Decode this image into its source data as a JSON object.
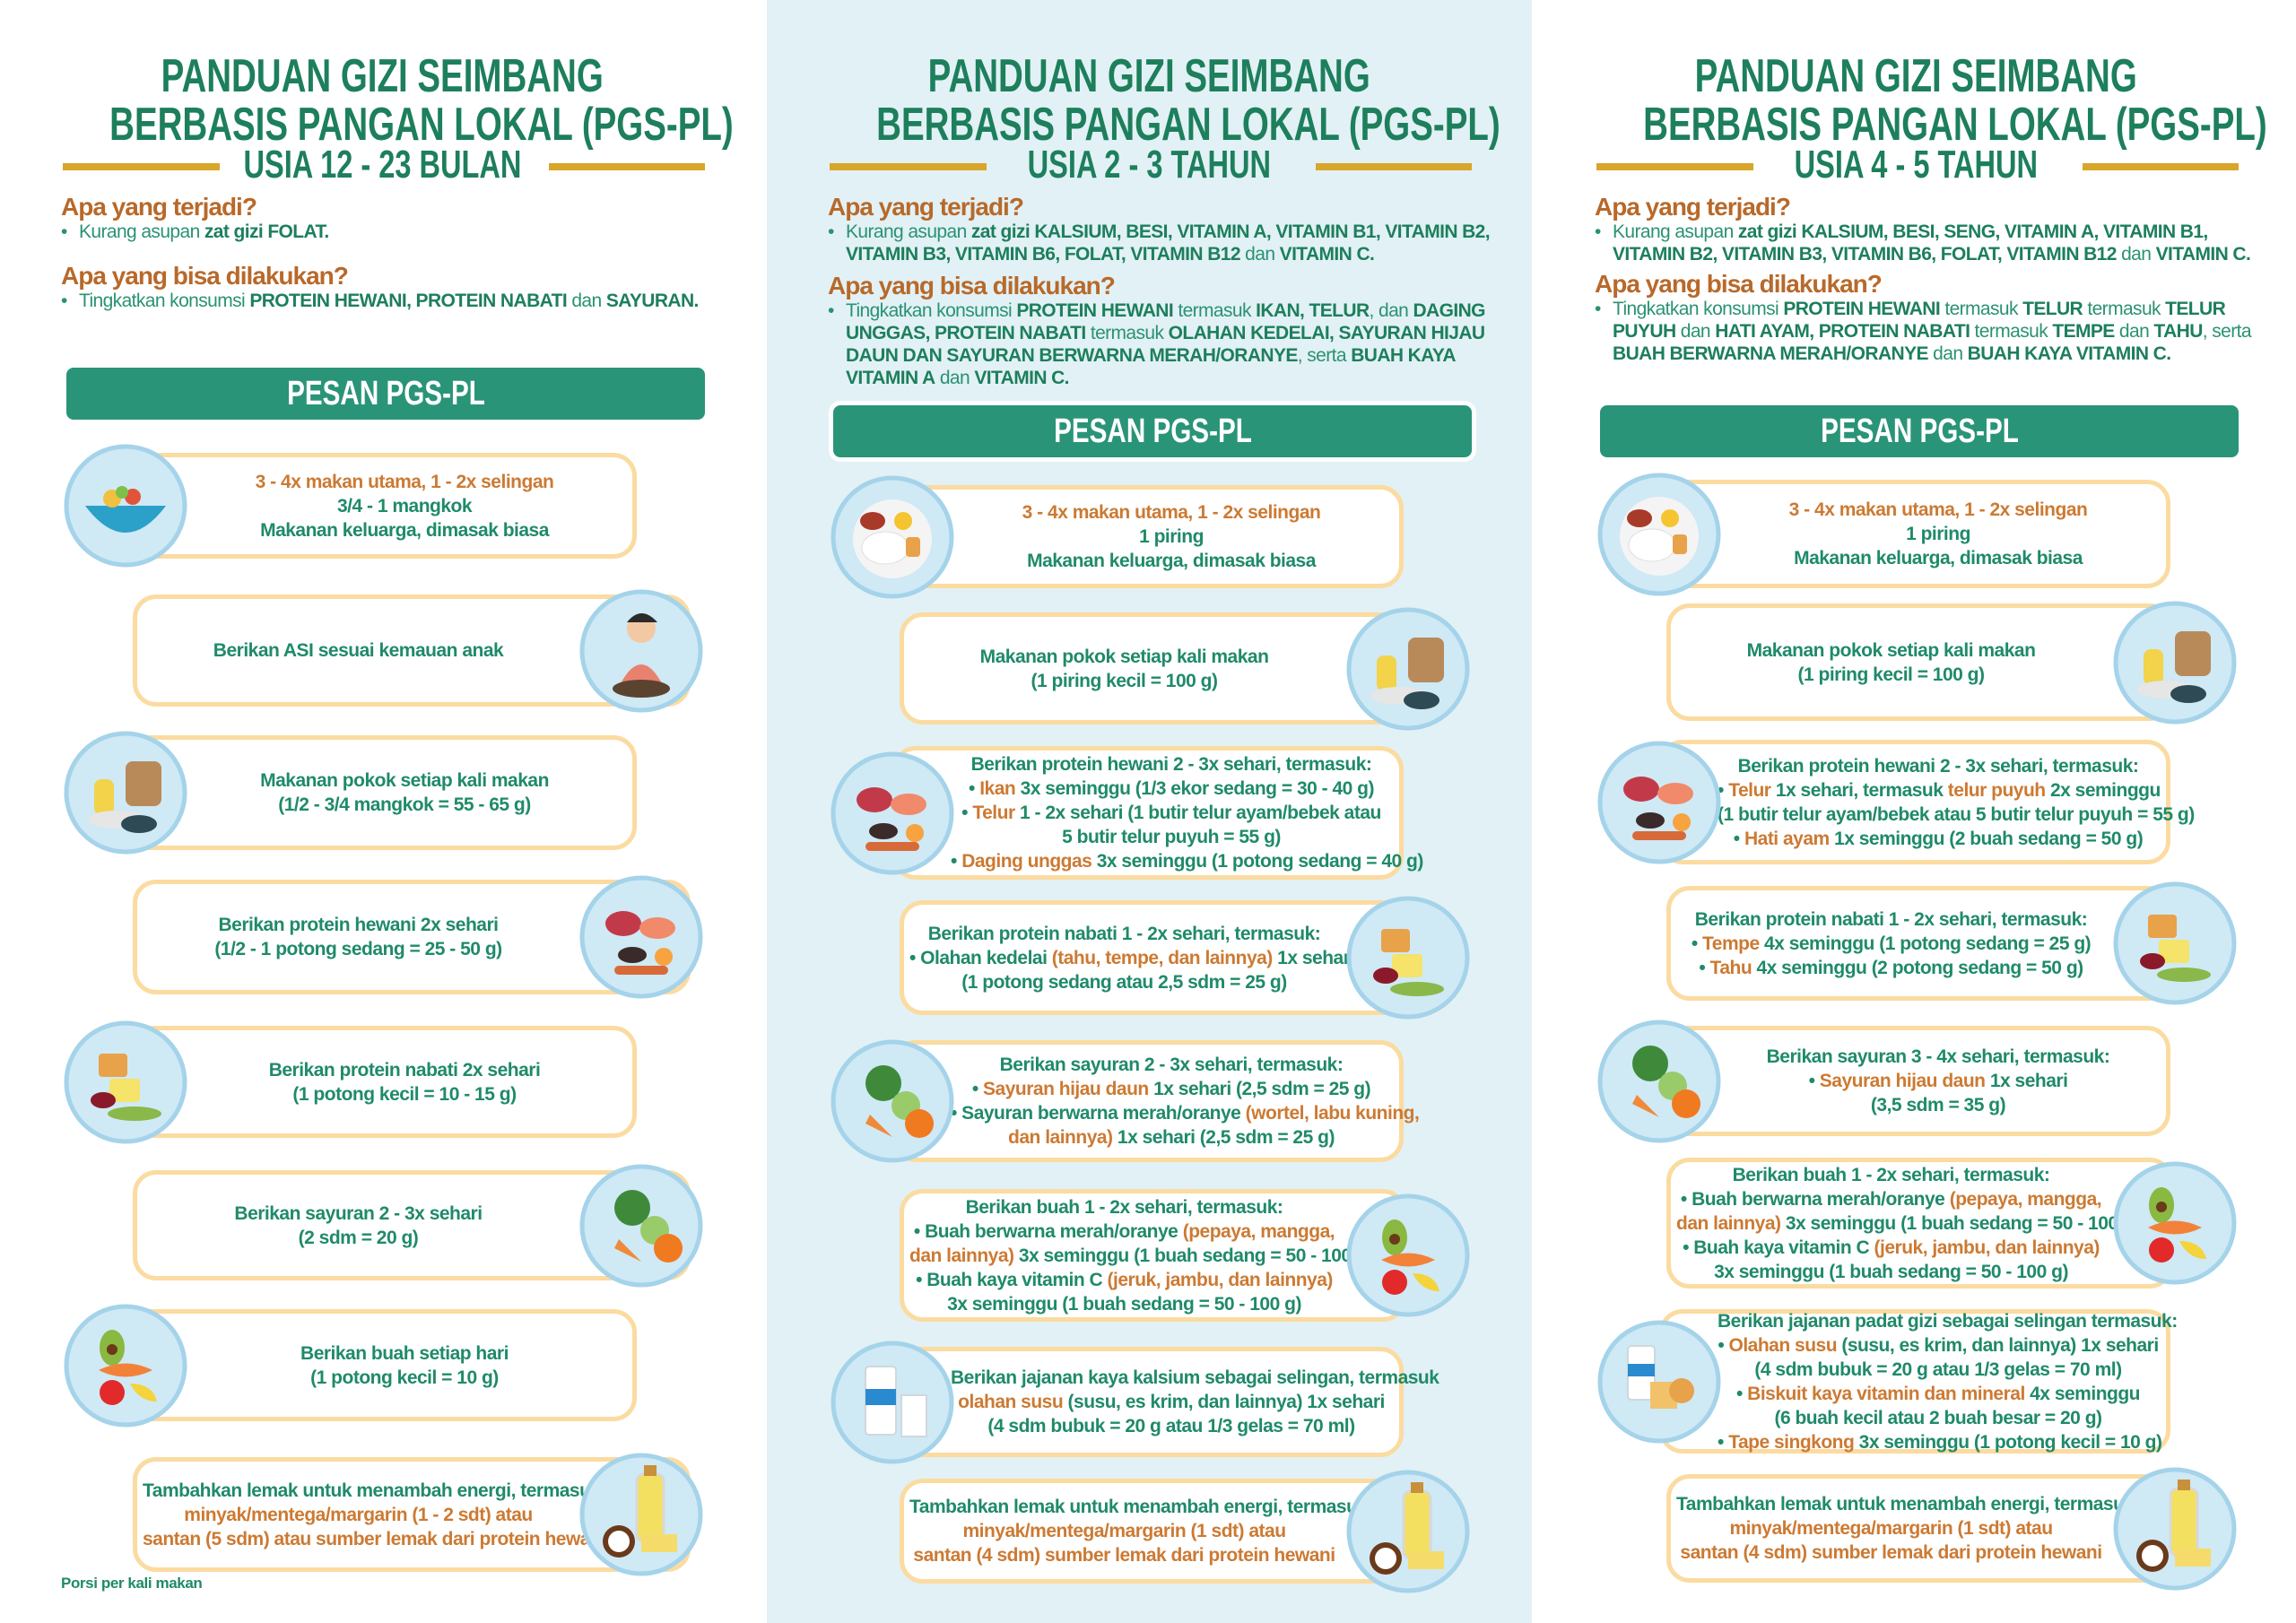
{
  "colors": {
    "green": "#1f8a6a",
    "banner": "#2a9478",
    "orange": "#cc7a33",
    "gold": "#d8a62a",
    "card_border": "#fbdba0",
    "icon_bg": "#cfe9f5"
  },
  "columns": [
    {
      "title_line1": "PANDUAN GIZI SEIMBANG",
      "title_line2": "BERBASIS PANGAN LOKAL (PGS-PL)",
      "age": "USIA 12 - 23 BULAN",
      "q1": "Apa yang terjadi?",
      "a1": [
        [
          "Kurang asupan ",
          ""
        ],
        [
          "zat gizi FOLAT.",
          "b"
        ]
      ],
      "q2": "Apa yang bisa dilakukan?",
      "a2": [
        [
          "Tingkatkan konsumsi ",
          ""
        ],
        [
          "PROTEIN HEWANI, PROTEIN NABATI",
          "b"
        ],
        [
          " dan ",
          ""
        ],
        [
          "SAYURAN.",
          "b"
        ]
      ],
      "banner": "PESAN PGS-PL",
      "cards": [
        {
          "icon": "soup-bowl-icon",
          "lines": [
            [
              [
                "3 - 4x makan utama, 1 - 2x selingan",
                "o"
              ]
            ],
            [
              [
                "3/4 - 1 mangkok",
                ""
              ]
            ],
            [
              [
                "Makanan keluarga, dimasak biasa",
                ""
              ]
            ]
          ]
        },
        {
          "icon": "breastfeeding-mother-icon",
          "lines": [
            [
              [
                "Berikan ASI sesuai kemauan anak",
                ""
              ]
            ]
          ]
        },
        {
          "icon": "staple-food-icon",
          "lines": [
            [
              [
                "Makanan pokok setiap kali makan",
                ""
              ]
            ],
            [
              [
                "(1/2 - 3/4 mangkok = 55 - 65 g)",
                ""
              ]
            ]
          ]
        },
        {
          "icon": "animal-protein-icon",
          "lines": [
            [
              [
                "Berikan protein hewani 2x sehari",
                ""
              ]
            ],
            [
              [
                "(1/2 - 1 potong sedang = 25 - 50 g)",
                ""
              ]
            ]
          ]
        },
        {
          "icon": "plant-protein-icon",
          "lines": [
            [
              [
                "Berikan protein nabati 2x sehari",
                ""
              ]
            ],
            [
              [
                "(1 potong kecil = 10 - 15 g)",
                ""
              ]
            ]
          ]
        },
        {
          "icon": "vegetables-icon",
          "lines": [
            [
              [
                "Berikan sayuran 2 - 3x sehari",
                ""
              ]
            ],
            [
              [
                "(2 sdm = 20 g)",
                ""
              ]
            ]
          ]
        },
        {
          "icon": "fruits-icon",
          "lines": [
            [
              [
                "Berikan buah setiap hari",
                ""
              ]
            ],
            [
              [
                "(1 potong kecil = 10 g)",
                ""
              ]
            ]
          ]
        },
        {
          "icon": "oil-coconut-butter-icon",
          "lines": [
            [
              [
                "Tambahkan lemak untuk menambah energi, termasuk",
                ""
              ]
            ],
            [
              [
                "minyak/mentega/margarin (1 - 2 sdt) atau",
                "o"
              ]
            ],
            [
              [
                "santan (5 sdm) atau sumber lemak dari protein hewani",
                "o"
              ]
            ]
          ]
        }
      ],
      "footnote": "Porsi per kali makan"
    },
    {
      "title_line1": "PANDUAN GIZI SEIMBANG",
      "title_line2": "BERBASIS PANGAN LOKAL (PGS-PL)",
      "age": "USIA 2 - 3 TAHUN",
      "q1": "Apa yang terjadi?",
      "a1": [
        [
          "Kurang asupan ",
          ""
        ],
        [
          "zat gizi KALSIUM, BESI, VITAMIN A, VITAMIN B1, VITAMIN B2, VITAMIN B3, VITAMIN B6, FOLAT, VITAMIN B12",
          "b"
        ],
        [
          " dan ",
          ""
        ],
        [
          "VITAMIN C.",
          "b"
        ]
      ],
      "q2": "Apa yang bisa dilakukan?",
      "a2": [
        [
          "Tingkatkan konsumsi ",
          ""
        ],
        [
          "PROTEIN HEWANI",
          "b"
        ],
        [
          " termasuk ",
          ""
        ],
        [
          "IKAN, TELUR",
          "b"
        ],
        [
          ", dan ",
          ""
        ],
        [
          "DAGING UNGGAS, PROTEIN NABATI",
          "b"
        ],
        [
          " termasuk ",
          ""
        ],
        [
          "OLAHAN KEDELAI, SAYURAN HIJAU DAUN DAN SAYURAN BERWARNA MERAH/ORANYE",
          "b"
        ],
        [
          ", serta ",
          ""
        ],
        [
          "BUAH KAYA VITAMIN A",
          "b"
        ],
        [
          " dan ",
          ""
        ],
        [
          "VITAMIN C.",
          "b"
        ]
      ],
      "banner": "PESAN PGS-PL",
      "cards": [
        {
          "icon": "rice-plate-icon",
          "lines": [
            [
              [
                "3 - 4x makan utama, 1 - 2x selingan",
                "o"
              ]
            ],
            [
              [
                "1 piring",
                ""
              ]
            ],
            [
              [
                "Makanan keluarga, dimasak biasa",
                ""
              ]
            ]
          ]
        },
        {
          "icon": "staple-food-icon",
          "lines": [
            [
              [
                "Makanan pokok setiap kali makan",
                ""
              ]
            ],
            [
              [
                "(1 piring kecil = 100 g)",
                ""
              ]
            ]
          ]
        },
        {
          "icon": "animal-protein-icon",
          "lines": [
            [
              [
                "Berikan protein hewani 2 - 3x sehari, termasuk:",
                ""
              ]
            ],
            [
              [
                "• ",
                ""
              ],
              [
                "Ikan",
                "o"
              ],
              [
                " 3x seminggu (1/3 ekor sedang = 30 - 40 g)",
                ""
              ]
            ],
            [
              [
                "• ",
                ""
              ],
              [
                "Telur",
                "o"
              ],
              [
                " 1 - 2x sehari (1 butir telur ayam/bebek atau",
                ""
              ]
            ],
            [
              [
                "5 butir telur puyuh = 55 g)",
                ""
              ]
            ],
            [
              [
                "• ",
                ""
              ],
              [
                "Daging unggas",
                "o"
              ],
              [
                " 3x seminggu  (1 potong sedang = 40 g)",
                ""
              ]
            ]
          ]
        },
        {
          "icon": "plant-protein-icon",
          "lines": [
            [
              [
                "Berikan protein nabati 1 - 2x sehari, termasuk:",
                ""
              ]
            ],
            [
              [
                "• Olahan kedelai ",
                ""
              ],
              [
                "(tahu, tempe, dan lainnya)",
                "o"
              ],
              [
                " 1x sehari",
                ""
              ]
            ],
            [
              [
                "(1 potong sedang atau 2,5 sdm = 25 g)",
                ""
              ]
            ]
          ]
        },
        {
          "icon": "vegetables-icon",
          "lines": [
            [
              [
                "Berikan sayuran 2 - 3x sehari, termasuk:",
                ""
              ]
            ],
            [
              [
                "• ",
                ""
              ],
              [
                "Sayuran hijau daun",
                "o"
              ],
              [
                " 1x sehari (2,5 sdm = 25 g)",
                ""
              ]
            ],
            [
              [
                "• Sayuran berwarna merah/oranye ",
                ""
              ],
              [
                "(wortel, labu kuning,",
                "o"
              ]
            ],
            [
              [
                "dan lainnya)",
                "o"
              ],
              [
                " 1x sehari (2,5 sdm = 25 g)",
                ""
              ]
            ]
          ]
        },
        {
          "icon": "fruits-icon",
          "lines": [
            [
              [
                "Berikan buah 1 - 2x sehari, termasuk:",
                ""
              ]
            ],
            [
              [
                "• Buah berwarna merah/oranye ",
                ""
              ],
              [
                "(pepaya, mangga,",
                "o"
              ]
            ],
            [
              [
                "dan lainnya)",
                "o"
              ],
              [
                " 3x seminggu (1 buah sedang = 50 - 100 g)",
                ""
              ]
            ],
            [
              [
                "• Buah kaya vitamin C ",
                ""
              ],
              [
                "(jeruk, jambu, dan lainnya)",
                "o"
              ]
            ],
            [
              [
                "3x seminggu (1 buah sedang = 50 - 100 g)",
                ""
              ]
            ]
          ]
        },
        {
          "icon": "milk-icon",
          "lines": [
            [
              [
                "Berikan jajanan kaya kalsium sebagai selingan, termasuk",
                ""
              ]
            ],
            [
              [
                "olahan susu",
                "o"
              ],
              [
                " (susu, es krim, dan lainnya) 1x sehari",
                ""
              ]
            ],
            [
              [
                "(4 sdm bubuk = 20 g atau 1/3 gelas = 70 ml)",
                ""
              ]
            ]
          ]
        },
        {
          "icon": "oil-coconut-butter-icon",
          "lines": [
            [
              [
                "Tambahkan lemak untuk menambah energi, termasuk",
                ""
              ]
            ],
            [
              [
                "minyak/mentega/margarin (1 sdt) atau",
                "o"
              ]
            ],
            [
              [
                "santan (4 sdm) sumber lemak dari protein hewani",
                "o"
              ]
            ]
          ]
        }
      ]
    },
    {
      "title_line1": "PANDUAN GIZI SEIMBANG",
      "title_line2": "BERBASIS PANGAN LOKAL (PGS-PL)",
      "age": "USIA 4 - 5 TAHUN",
      "q1": "Apa yang terjadi?",
      "a1": [
        [
          "Kurang asupan ",
          ""
        ],
        [
          "zat gizi KALSIUM, BESI, SENG, VITAMIN A, VITAMIN B1, VITAMIN B2, VITAMIN B3, VITAMIN B6, FOLAT, VITAMIN B12",
          "b"
        ],
        [
          " dan ",
          ""
        ],
        [
          "VITAMIN C.",
          "b"
        ]
      ],
      "q2": "Apa yang bisa dilakukan?",
      "a2": [
        [
          "Tingkatkan konsumsi ",
          ""
        ],
        [
          "PROTEIN HEWANI",
          "b"
        ],
        [
          " termasuk ",
          ""
        ],
        [
          "TELUR",
          "b"
        ],
        [
          " termasuk ",
          ""
        ],
        [
          "TELUR PUYUH",
          "b"
        ],
        [
          " dan ",
          ""
        ],
        [
          "HATI AYAM, PROTEIN NABATI",
          "b"
        ],
        [
          " termasuk ",
          ""
        ],
        [
          "TEMPE",
          "b"
        ],
        [
          " dan ",
          ""
        ],
        [
          "TAHU",
          "b"
        ],
        [
          ", serta ",
          ""
        ],
        [
          "BUAH BERWARNA MERAH/ORANYE",
          "b"
        ],
        [
          " dan ",
          ""
        ],
        [
          "BUAH KAYA VITAMIN C.",
          "b"
        ]
      ],
      "banner": "PESAN PGS-PL",
      "cards": [
        {
          "icon": "rice-plate-icon",
          "lines": [
            [
              [
                "3 - 4x makan utama, 1 - 2x selingan",
                "o"
              ]
            ],
            [
              [
                "1 piring",
                ""
              ]
            ],
            [
              [
                "Makanan keluarga, dimasak biasa",
                ""
              ]
            ]
          ]
        },
        {
          "icon": "staple-food-icon",
          "lines": [
            [
              [
                "Makanan pokok setiap kali makan",
                ""
              ]
            ],
            [
              [
                "(1 piring kecil = 100 g)",
                ""
              ]
            ]
          ]
        },
        {
          "icon": "animal-protein-icon",
          "lines": [
            [
              [
                "Berikan protein hewani 2 - 3x sehari, termasuk:",
                ""
              ]
            ],
            [
              [
                "• ",
                ""
              ],
              [
                "Telur",
                "o"
              ],
              [
                " 1x sehari, termasuk ",
                ""
              ],
              [
                "telur puyuh",
                "o"
              ],
              [
                " 2x seminggu",
                ""
              ]
            ],
            [
              [
                "(1 butir telur ayam/bebek atau 5 butir telur puyuh = 55 g)",
                ""
              ]
            ],
            [
              [
                "• ",
                ""
              ],
              [
                "Hati ayam",
                "o"
              ],
              [
                " 1x seminggu (2 buah sedang = 50 g)",
                ""
              ]
            ]
          ]
        },
        {
          "icon": "plant-protein-icon",
          "lines": [
            [
              [
                "Berikan protein nabati 1 - 2x sehari, termasuk:",
                ""
              ]
            ],
            [
              [
                "• ",
                ""
              ],
              [
                "Tempe",
                "o"
              ],
              [
                " 4x seminggu  (1 potong sedang = 25 g)",
                ""
              ]
            ],
            [
              [
                "• ",
                ""
              ],
              [
                "Tahu",
                "o"
              ],
              [
                " 4x seminggu (2 potong sedang = 50 g)",
                ""
              ]
            ]
          ]
        },
        {
          "icon": "vegetables-icon",
          "lines": [
            [
              [
                "Berikan sayuran 3 - 4x sehari, termasuk:",
                ""
              ]
            ],
            [
              [
                "• ",
                ""
              ],
              [
                "Sayuran hijau daun",
                "o"
              ],
              [
                " 1x sehari",
                ""
              ]
            ],
            [
              [
                "(3,5 sdm = 35 g)",
                ""
              ]
            ]
          ]
        },
        {
          "icon": "fruits-icon",
          "lines": [
            [
              [
                "Berikan buah 1 - 2x sehari, termasuk:",
                ""
              ]
            ],
            [
              [
                "• Buah berwarna merah/oranye ",
                ""
              ],
              [
                "(pepaya, mangga,",
                "o"
              ]
            ],
            [
              [
                "dan lainnya)",
                "o"
              ],
              [
                " 3x seminggu (1 buah sedang = 50 - 100 g)",
                ""
              ]
            ],
            [
              [
                "• Buah kaya vitamin C ",
                ""
              ],
              [
                "(jeruk, jambu, dan lainnya)",
                "o"
              ]
            ],
            [
              [
                "3x seminggu (1 buah sedang = 50 - 100 g)",
                ""
              ]
            ]
          ]
        },
        {
          "icon": "milk-biscuit-icon",
          "lines": [
            [
              [
                "Berikan jajanan padat gizi sebagai selingan termasuk:",
                ""
              ]
            ],
            [
              [
                "• ",
                ""
              ],
              [
                "Olahan susu",
                "o"
              ],
              [
                " (susu, es krim, dan lainnya) 1x sehari",
                ""
              ]
            ],
            [
              [
                "(4 sdm bubuk = 20 g atau 1/3 gelas = 70 ml)",
                ""
              ]
            ],
            [
              [
                "• ",
                ""
              ],
              [
                "Biskuit kaya vitamin dan mineral",
                "o"
              ],
              [
                " 4x seminggu",
                ""
              ]
            ],
            [
              [
                "(6 buah kecil atau 2 buah besar = 20 g)",
                ""
              ]
            ],
            [
              [
                "• ",
                ""
              ],
              [
                "Tape singkong",
                "o"
              ],
              [
                " 3x seminggu (1 potong kecil = 10 g)",
                ""
              ]
            ]
          ]
        },
        {
          "icon": "oil-coconut-butter-icon",
          "lines": [
            [
              [
                "Tambahkan lemak untuk menambah energi, termasuk",
                ""
              ]
            ],
            [
              [
                "minyak/mentega/margarin (1 sdt) atau",
                "o"
              ]
            ],
            [
              [
                "santan (4 sdm) sumber lemak dari protein hewani",
                "o"
              ]
            ]
          ]
        }
      ]
    }
  ]
}
